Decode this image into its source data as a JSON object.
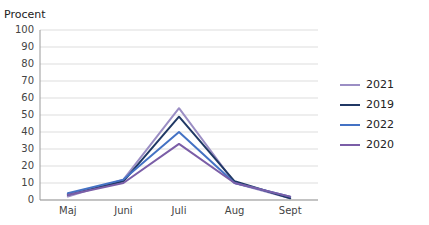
{
  "chart_data": {
    "type": "line",
    "y_label": "Procent",
    "categories": [
      "Maj",
      "Juni",
      "Juli",
      "Aug",
      "Sept"
    ],
    "series": [
      {
        "name": "2021",
        "color": "#9b8ec4",
        "values": [
          2,
          12,
          54,
          10,
          1
        ]
      },
      {
        "name": "2019",
        "color": "#203864",
        "values": [
          3,
          11,
          49,
          11,
          1
        ]
      },
      {
        "name": "2022",
        "color": "#4472c4",
        "values": [
          4,
          12,
          40,
          10,
          2
        ]
      },
      {
        "name": "2020",
        "color": "#7b5ea7",
        "values": [
          3,
          10,
          33,
          10,
          2
        ]
      }
    ],
    "ylim": [
      0,
      100
    ],
    "yticks": [
      0,
      10,
      20,
      30,
      40,
      50,
      60,
      70,
      80,
      90,
      100
    ],
    "grid": true,
    "legend": "right"
  }
}
